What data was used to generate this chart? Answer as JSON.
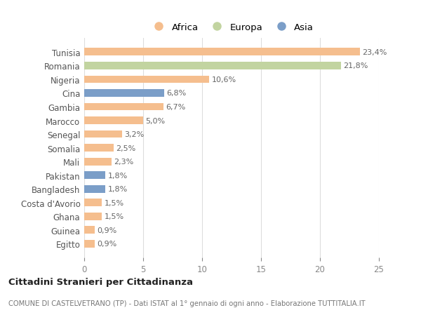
{
  "categories": [
    "Tunisia",
    "Romania",
    "Nigeria",
    "Cina",
    "Gambia",
    "Marocco",
    "Senegal",
    "Somalia",
    "Mali",
    "Pakistan",
    "Bangladesh",
    "Costa d'Avorio",
    "Ghana",
    "Guinea",
    "Egitto"
  ],
  "values": [
    23.4,
    21.8,
    10.6,
    6.8,
    6.7,
    5.0,
    3.2,
    2.5,
    2.3,
    1.8,
    1.8,
    1.5,
    1.5,
    0.9,
    0.9
  ],
  "labels": [
    "23,4%",
    "21,8%",
    "10,6%",
    "6,8%",
    "6,7%",
    "5,0%",
    "3,2%",
    "2,5%",
    "2,3%",
    "1,8%",
    "1,8%",
    "1,5%",
    "1,5%",
    "0,9%",
    "0,9%"
  ],
  "continents": [
    "Africa",
    "Europa",
    "Africa",
    "Asia",
    "Africa",
    "Africa",
    "Africa",
    "Africa",
    "Africa",
    "Asia",
    "Asia",
    "Africa",
    "Africa",
    "Africa",
    "Africa"
  ],
  "colors": {
    "Africa": "#F5BE8E",
    "Europa": "#C2D4A0",
    "Asia": "#7B9EC8"
  },
  "legend_labels": [
    "Africa",
    "Europa",
    "Asia"
  ],
  "title": "Cittadini Stranieri per Cittadinanza",
  "subtitle": "COMUNE DI CASTELVETRANO (TP) - Dati ISTAT al 1° gennaio di ogni anno - Elaborazione TUTTITALIA.IT",
  "xlim": [
    0,
    25
  ],
  "xticks": [
    0,
    5,
    10,
    15,
    20,
    25
  ],
  "background_color": "#ffffff",
  "grid_color": "#dddddd",
  "bar_height": 0.55,
  "label_fontsize": 8,
  "ytick_fontsize": 8.5,
  "xtick_fontsize": 8.5
}
